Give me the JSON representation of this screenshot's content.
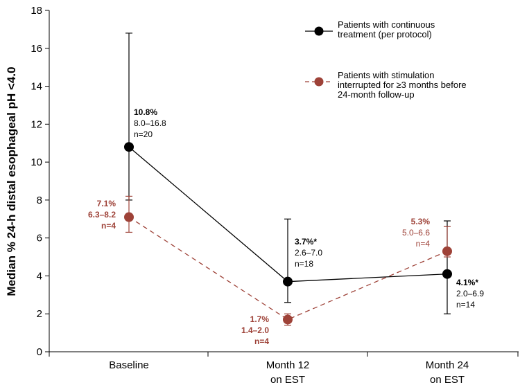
{
  "chart_data": {
    "type": "line",
    "title": "",
    "xlabel": "",
    "ylabel": "Median % 24-h distal esophageal pH <4.0",
    "ylim": [
      0,
      18
    ],
    "yticks": [
      0,
      2,
      4,
      6,
      8,
      10,
      12,
      14,
      16,
      18
    ],
    "categories": [
      "Baseline",
      "Month 12\non EST",
      "Month 24\non EST"
    ],
    "colors": {
      "continuous": "#000000",
      "interrupted": "#9e4238"
    },
    "series": [
      {
        "key": "continuous",
        "name": "Patients with continuous\ntreatment (per protocol)",
        "style": "solid",
        "values": [
          10.8,
          3.7,
          4.1
        ],
        "lower": [
          8.0,
          2.6,
          2.0
        ],
        "upper": [
          16.8,
          7.0,
          6.9
        ],
        "labels": [
          [
            "10.8%",
            "8.0–16.8",
            "n=20"
          ],
          [
            "3.7%*",
            "2.6–7.0",
            "n=18"
          ],
          [
            "4.1%*",
            "2.0–6.9",
            "n=14"
          ]
        ]
      },
      {
        "key": "interrupted",
        "name": "Patients with stimulation\ninterrupted for ≥3 months before\n24-month follow-up",
        "style": "dashed",
        "values": [
          7.1,
          1.7,
          5.3
        ],
        "lower": [
          6.3,
          1.4,
          5.0
        ],
        "upper": [
          8.2,
          2.0,
          6.6
        ],
        "labels": [
          [
            "7.1%",
            "6.3–8.2",
            "n=4"
          ],
          [
            "1.7%",
            "1.4–2.0",
            "n=4"
          ],
          [
            "5.3%",
            "5.0–6.6",
            "n=4"
          ]
        ]
      }
    ]
  }
}
